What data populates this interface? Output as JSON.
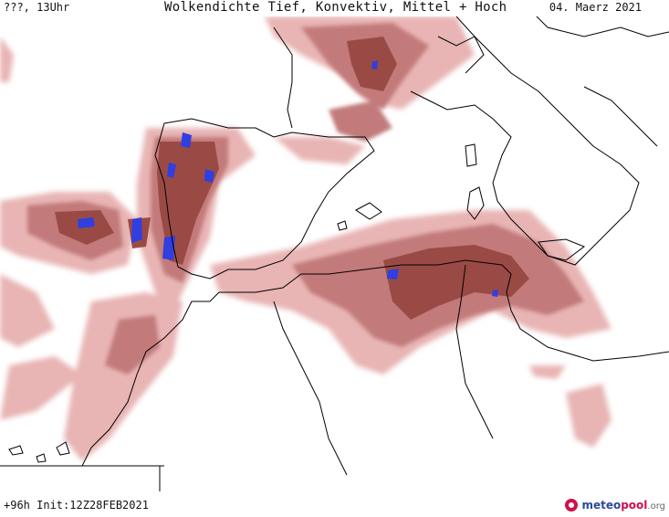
{
  "header": {
    "location_time": "???, 13Uhr",
    "title": "Wolkendichte  Tief, Konvektiv, Mittel + Hoch",
    "date": "04. Maerz 2021"
  },
  "footer": {
    "forecast": "+96h  Init:12Z28FEB2021",
    "brand_a": "meteo",
    "brand_b": "pool",
    "brand_c": ".org"
  },
  "colors": {
    "cloud_light": "#e8b4b4",
    "cloud_mid": "#c27a7a",
    "cloud_dark": "#9a4a45",
    "cloud_max": "#2f3fe0",
    "coastline": "#000000"
  }
}
